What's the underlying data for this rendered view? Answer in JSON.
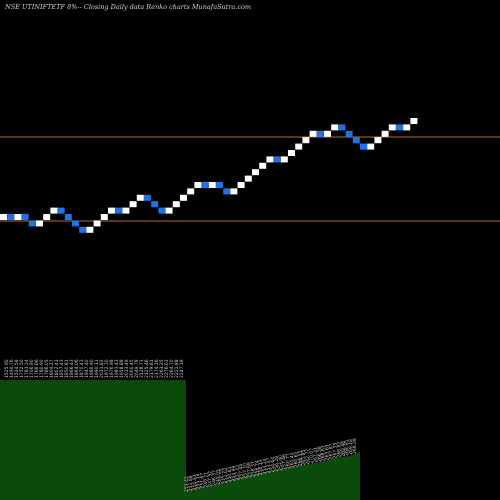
{
  "title": "NSE UTINIFTETF 8%-- Closing Daily data  Renko  charts MunafaSutra.com",
  "chart_data": {
    "type": "renko",
    "brick_colors": {
      "up": "#ffffff",
      "down": "#1e73e6"
    },
    "reference_lines": {
      "color": "#c0692a",
      "values": [
        "upper",
        "lower"
      ]
    },
    "bricks": [
      {
        "dir": "up",
        "level": 0
      },
      {
        "dir": "down",
        "level": 0
      },
      {
        "dir": "up",
        "level": 0
      },
      {
        "dir": "down",
        "level": 0
      },
      {
        "dir": "down",
        "level": -1
      },
      {
        "dir": "up",
        "level": -1
      },
      {
        "dir": "up",
        "level": 0
      },
      {
        "dir": "up",
        "level": 1
      },
      {
        "dir": "down",
        "level": 1
      },
      {
        "dir": "down",
        "level": 0
      },
      {
        "dir": "down",
        "level": -1
      },
      {
        "dir": "down",
        "level": -2
      },
      {
        "dir": "up",
        "level": -2
      },
      {
        "dir": "up",
        "level": -1
      },
      {
        "dir": "up",
        "level": 0
      },
      {
        "dir": "up",
        "level": 1
      },
      {
        "dir": "down",
        "level": 1
      },
      {
        "dir": "up",
        "level": 1
      },
      {
        "dir": "up",
        "level": 2
      },
      {
        "dir": "up",
        "level": 3
      },
      {
        "dir": "down",
        "level": 3
      },
      {
        "dir": "down",
        "level": 2
      },
      {
        "dir": "down",
        "level": 1
      },
      {
        "dir": "up",
        "level": 1
      },
      {
        "dir": "up",
        "level": 2
      },
      {
        "dir": "up",
        "level": 3
      },
      {
        "dir": "up",
        "level": 4
      },
      {
        "dir": "up",
        "level": 5
      },
      {
        "dir": "down",
        "level": 5
      },
      {
        "dir": "up",
        "level": 5
      },
      {
        "dir": "down",
        "level": 5
      },
      {
        "dir": "down",
        "level": 4
      },
      {
        "dir": "up",
        "level": 4
      },
      {
        "dir": "up",
        "level": 5
      },
      {
        "dir": "up",
        "level": 6
      },
      {
        "dir": "up",
        "level": 7
      },
      {
        "dir": "up",
        "level": 8
      },
      {
        "dir": "up",
        "level": 9
      },
      {
        "dir": "down",
        "level": 9
      },
      {
        "dir": "up",
        "level": 9
      },
      {
        "dir": "up",
        "level": 10
      },
      {
        "dir": "up",
        "level": 11
      },
      {
        "dir": "up",
        "level": 12
      },
      {
        "dir": "up",
        "level": 13
      },
      {
        "dir": "down",
        "level": 13
      },
      {
        "dir": "up",
        "level": 13
      },
      {
        "dir": "up",
        "level": 14
      },
      {
        "dir": "down",
        "level": 14
      },
      {
        "dir": "down",
        "level": 13
      },
      {
        "dir": "down",
        "level": 12
      },
      {
        "dir": "down",
        "level": 11
      },
      {
        "dir": "up",
        "level": 11
      },
      {
        "dir": "up",
        "level": 12
      },
      {
        "dir": "up",
        "level": 13
      },
      {
        "dir": "up",
        "level": 14
      },
      {
        "dir": "down",
        "level": 14
      },
      {
        "dir": "up",
        "level": 14
      },
      {
        "dir": "up",
        "level": 15
      }
    ],
    "volume": {
      "color": "#0a4a0a",
      "left_block": {
        "labels": [
          "1525.90",
          "1490.76",
          "1534.58",
          "1752.50",
          "1783.24",
          "1706.90",
          "1766.66",
          "1780.90",
          "1766.05",
          "1804.27",
          "1802.43",
          "1857.43",
          "1850.81",
          "1866.43",
          "1864.06",
          "1870.43",
          "1947.40",
          "1980.90",
          "1990.11",
          "2031.82",
          "1972.30",
          "1976.98",
          "1983.43",
          "1958.88",
          "2013.49",
          "2000.45",
          "2049.78",
          "2128.71",
          "2125.46",
          "2179.81",
          "2174.16",
          "2263.25",
          "2276.03",
          "2264.70",
          "2221.88",
          "2247.18"
        ]
      },
      "right_block": {
        "labels": [
          "253.42",
          "251.88",
          "250.93",
          "255.14",
          "251.67",
          "249.21",
          "247.52",
          "246.37",
          "249.05",
          "250.55",
          "251.02",
          "250.81",
          "254.99",
          "257.02",
          "257.44",
          "257.10",
          "257.68",
          "258.37",
          "256.74",
          "256.13",
          "254.24",
          "253.07",
          "254.64",
          "256.28",
          "253.40",
          "257.46",
          "260.77",
          "261.42",
          "260.61",
          "266.51",
          "265.95",
          "262.77",
          "270.07",
          "267.41",
          "266.58",
          "268.63",
          "263.63",
          "267.87",
          "267.35",
          "266.82",
          "269.48",
          "268.95",
          "269.18",
          "268.28"
        ]
      }
    }
  }
}
